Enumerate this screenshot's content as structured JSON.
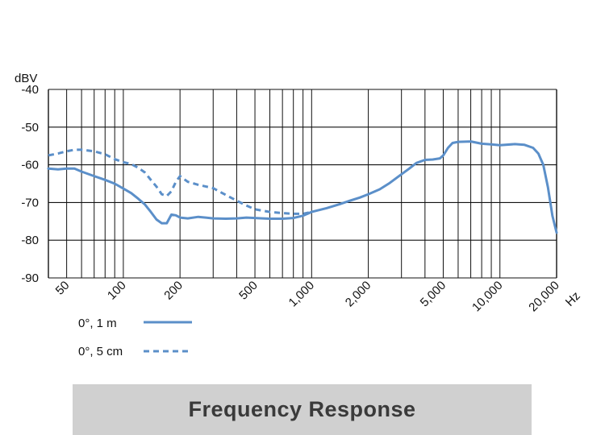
{
  "chart_data": {
    "type": "line",
    "title": "Frequency Response",
    "ylabel": "dBV",
    "xlabel_unit": "Hz",
    "x_scale": "log",
    "xlim": [
      40,
      20000
    ],
    "ylim": [
      -90,
      -40
    ],
    "y_ticks": [
      {
        "value": -40,
        "label": "-40"
      },
      {
        "value": -50,
        "label": "-50"
      },
      {
        "value": -60,
        "label": "-60"
      },
      {
        "value": -70,
        "label": "-70"
      },
      {
        "value": -80,
        "label": "-80"
      },
      {
        "value": -90,
        "label": "-90"
      }
    ],
    "x_ticks": [
      {
        "value": 50,
        "label": "50"
      },
      {
        "value": 100,
        "label": "100"
      },
      {
        "value": 200,
        "label": "200"
      },
      {
        "value": 500,
        "label": "500"
      },
      {
        "value": 1000,
        "label": "1,000"
      },
      {
        "value": 2000,
        "label": "2,000"
      },
      {
        "value": 5000,
        "label": "5,000"
      },
      {
        "value": 10000,
        "label": "10,000"
      },
      {
        "value": 20000,
        "label": "20,000"
      }
    ],
    "grid": true,
    "series_color": "#5b8fc9",
    "legend_placement": "bottom-left",
    "series": [
      {
        "name": "0°, 1 m",
        "style": "solid",
        "points": [
          [
            40,
            -61
          ],
          [
            45,
            -61.2
          ],
          [
            50,
            -61
          ],
          [
            55,
            -61
          ],
          [
            60,
            -61.8
          ],
          [
            70,
            -63
          ],
          [
            80,
            -64
          ],
          [
            90,
            -65
          ],
          [
            100,
            -66.3
          ],
          [
            110,
            -67.5
          ],
          [
            120,
            -69
          ],
          [
            130,
            -70.5
          ],
          [
            140,
            -72.5
          ],
          [
            150,
            -74.5
          ],
          [
            160,
            -75.5
          ],
          [
            170,
            -75.5
          ],
          [
            180,
            -73.2
          ],
          [
            190,
            -73.4
          ],
          [
            200,
            -74
          ],
          [
            220,
            -74.2
          ],
          [
            250,
            -73.8
          ],
          [
            300,
            -74.2
          ],
          [
            350,
            -74.3
          ],
          [
            400,
            -74.2
          ],
          [
            450,
            -74
          ],
          [
            500,
            -74.1
          ],
          [
            550,
            -74.2
          ],
          [
            600,
            -74.3
          ],
          [
            700,
            -74.3
          ],
          [
            800,
            -74.1
          ],
          [
            900,
            -73.5
          ],
          [
            1000,
            -72.5
          ],
          [
            1200,
            -71.5
          ],
          [
            1400,
            -70.5
          ],
          [
            1600,
            -69.5
          ],
          [
            1800,
            -68.7
          ],
          [
            2000,
            -67.8
          ],
          [
            2300,
            -66.5
          ],
          [
            2600,
            -64.8
          ],
          [
            3000,
            -62.5
          ],
          [
            3300,
            -61
          ],
          [
            3600,
            -59.5
          ],
          [
            4000,
            -58.7
          ],
          [
            4400,
            -58.6
          ],
          [
            4800,
            -58.3
          ],
          [
            5000,
            -57.5
          ],
          [
            5300,
            -55.5
          ],
          [
            5600,
            -54.2
          ],
          [
            6000,
            -53.9
          ],
          [
            7000,
            -53.8
          ],
          [
            8000,
            -54.4
          ],
          [
            9000,
            -54.6
          ],
          [
            10000,
            -54.8
          ],
          [
            12000,
            -54.5
          ],
          [
            13500,
            -54.7
          ],
          [
            15000,
            -55.5
          ],
          [
            16000,
            -57
          ],
          [
            17000,
            -60
          ],
          [
            18000,
            -66
          ],
          [
            19000,
            -73.5
          ],
          [
            20000,
            -78
          ]
        ]
      },
      {
        "name": "0°, 5 cm",
        "style": "dashed",
        "points": [
          [
            40,
            -57.5
          ],
          [
            45,
            -57
          ],
          [
            50,
            -56.4
          ],
          [
            55,
            -56
          ],
          [
            60,
            -56
          ],
          [
            70,
            -56.4
          ],
          [
            80,
            -57.2
          ],
          [
            90,
            -58.5
          ],
          [
            100,
            -59.3
          ],
          [
            110,
            -59.8
          ],
          [
            120,
            -60.8
          ],
          [
            130,
            -62
          ],
          [
            140,
            -64
          ],
          [
            150,
            -65.8
          ],
          [
            160,
            -67.8
          ],
          [
            170,
            -68.3
          ],
          [
            180,
            -67
          ],
          [
            190,
            -64.5
          ],
          [
            200,
            -63
          ],
          [
            220,
            -64.5
          ],
          [
            250,
            -65.3
          ],
          [
            300,
            -66.2
          ],
          [
            350,
            -68
          ],
          [
            400,
            -69.5
          ],
          [
            450,
            -70.8
          ],
          [
            500,
            -71.8
          ],
          [
            600,
            -72.5
          ],
          [
            700,
            -72.8
          ],
          [
            800,
            -73
          ],
          [
            900,
            -73
          ],
          [
            1000,
            -72.5
          ]
        ]
      }
    ]
  }
}
